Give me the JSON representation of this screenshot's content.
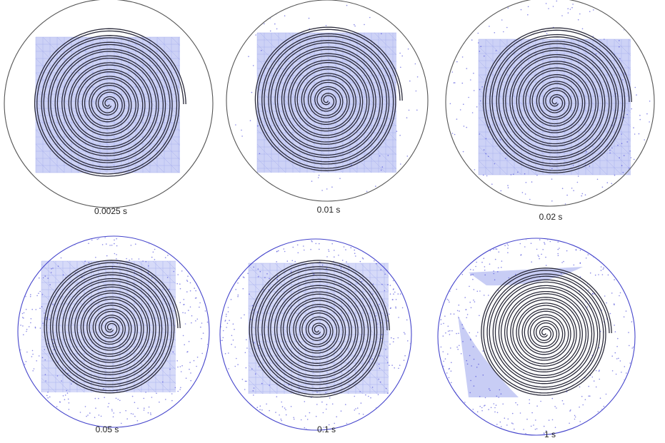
{
  "figure": {
    "panels": [
      {
        "label": "0.0025 s",
        "boundary_color": "#555555",
        "has_square_mesh": true,
        "scatter": "none"
      },
      {
        "label": "0.01 s",
        "boundary_color": "#555555",
        "has_square_mesh": true,
        "scatter": "light"
      },
      {
        "label": "0.02 s",
        "boundary_color": "#555555",
        "has_square_mesh": true,
        "scatter": "medium"
      },
      {
        "label": "0.05 s",
        "boundary_color": "#4444cc",
        "has_square_mesh": true,
        "scatter": "heavy"
      },
      {
        "label": "0.1 s",
        "boundary_color": "#4444cc",
        "has_square_mesh": true,
        "scatter": "heavy"
      },
      {
        "label": "1 s",
        "boundary_color": "#4444cc",
        "has_square_mesh": false,
        "scatter": "full"
      }
    ],
    "colors": {
      "mesh": "#c8cdf5",
      "mesh_stroke": "#a9b0ee",
      "spiral": "#2a2a3a",
      "particles": "#3b3bd6"
    }
  }
}
